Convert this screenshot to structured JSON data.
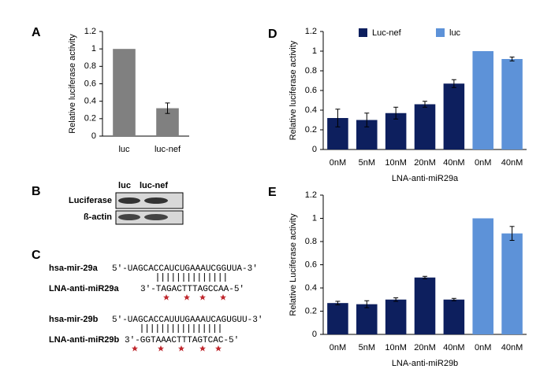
{
  "panels": {
    "a": "A",
    "b": "B",
    "c": "C",
    "d": "D",
    "e": "E"
  },
  "chart_data": [
    {
      "type": "bar",
      "y_label": "Relative luciferase activity",
      "categories": [
        "luc",
        "luc-nef"
      ],
      "series": [
        {
          "color": "#808080",
          "values": [
            1,
            0.32
          ],
          "errors": [
            0,
            0.06
          ]
        }
      ],
      "ylim": [
        0,
        1.2
      ],
      "yticks": [
        0,
        0.2,
        0.4,
        0.6,
        0.8,
        1,
        1.2
      ]
    },
    {
      "type": "bar",
      "x_label": "LNA-anti-miR29a",
      "y_label": "Relative luciferase activity",
      "categories": [
        "0nM",
        "5nM",
        "10nM",
        "20nM",
        "40nM",
        "0nM",
        "40nM"
      ],
      "series": [
        {
          "name": "Luc-nef",
          "color": "#0d1f5e",
          "values": [
            0.32,
            0.3,
            0.37,
            0.46,
            0.67,
            null,
            null
          ],
          "errors": [
            0.09,
            0.07,
            0.06,
            0.03,
            0.04,
            null,
            null
          ]
        },
        {
          "name": "luc",
          "color": "#5d92d8",
          "values": [
            null,
            null,
            null,
            null,
            null,
            1,
            0.92
          ],
          "errors": [
            null,
            null,
            null,
            null,
            null,
            0,
            0.02
          ]
        }
      ],
      "ylim": [
        0,
        1.2
      ],
      "yticks": [
        0,
        0.2,
        0.4,
        0.6,
        0.8,
        1,
        1.2
      ],
      "legend": "top"
    },
    {
      "type": "bar",
      "x_label": "LNA-anti-miR29b",
      "y_label": "Relative Luciferase activity",
      "categories": [
        "0nM",
        "5nM",
        "10nM",
        "20nM",
        "40nM",
        "0nM",
        "40nM"
      ],
      "series": [
        {
          "color": "#0d1f5e",
          "values": [
            0.27,
            0.26,
            0.3,
            0.49,
            0.3,
            null,
            null
          ],
          "errors": [
            0.015,
            0.03,
            0.015,
            0.01,
            0.01,
            null,
            null
          ]
        },
        {
          "color": "#5d92d8",
          "values": [
            null,
            null,
            null,
            null,
            null,
            1,
            0.87
          ],
          "errors": [
            null,
            null,
            null,
            null,
            null,
            0,
            0.06
          ]
        }
      ],
      "ylim": [
        0,
        1.2
      ],
      "yticks": [
        0,
        0.2,
        0.4,
        0.6,
        0.8,
        1,
        1.2
      ]
    }
  ],
  "blot": {
    "lanes": [
      "luc",
      "luc-nef"
    ],
    "rows": [
      "Luciferase",
      "ß-actin"
    ]
  },
  "sequences": {
    "mir29a": {
      "name": "hsa-mir-29a",
      "seq": "5′-UAGCACCAUCUGAAAUCGGUUA-3′"
    },
    "lna29a": {
      "name": "LNA-anti-miR29a",
      "seq": "3′-TAGACTTTAGCCAA-5′"
    },
    "mir29b": {
      "name": "hsa-mir-29b",
      "seq": "5′-UAGCACCAUUUGAAAUCAGUGUU-3′"
    },
    "lna29b": {
      "name": "LNA-anti-miR29b",
      "seq": "3′-GGTAAACTTTAGTCAC-5′"
    }
  }
}
